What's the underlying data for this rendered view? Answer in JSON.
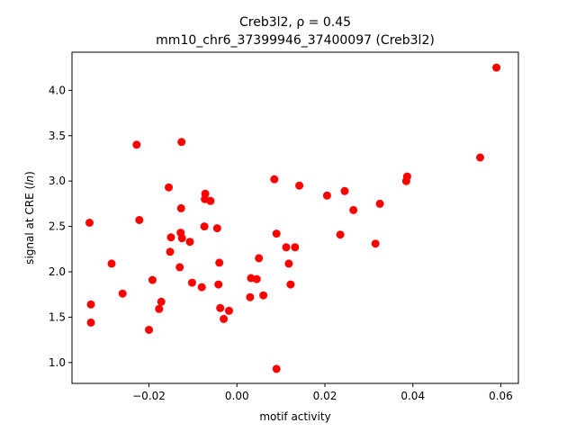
{
  "chart_data": {
    "type": "scatter",
    "title_line1": "Creb3l2, ρ = 0.45",
    "title_line2": "mm10_chr6_37399946_37400097 (Creb3l2)",
    "xlabel": "motif activity",
    "ylabel_prefix": "signal at CRE (",
    "ylabel_italic": "ln",
    "ylabel_suffix": ")",
    "xlim": [
      -0.0375,
      0.064
    ],
    "ylim": [
      0.77,
      4.42
    ],
    "xticks": [
      -0.02,
      0.0,
      0.02,
      0.04,
      0.06
    ],
    "xtick_labels": [
      "−0.02",
      "0.00",
      "0.02",
      "0.04",
      "0.06"
    ],
    "yticks": [
      1.0,
      1.5,
      2.0,
      2.5,
      3.0,
      3.5,
      4.0
    ],
    "ytick_labels": [
      "1.0",
      "1.5",
      "2.0",
      "2.5",
      "3.0",
      "3.5",
      "4.0"
    ],
    "grid": false,
    "marker_color": "#ff0000",
    "points": [
      [
        -0.0335,
        2.54
      ],
      [
        -0.0332,
        1.64
      ],
      [
        -0.0332,
        1.44
      ],
      [
        -0.0285,
        2.09
      ],
      [
        -0.026,
        1.76
      ],
      [
        -0.0228,
        3.4
      ],
      [
        -0.0222,
        2.57
      ],
      [
        -0.02,
        1.36
      ],
      [
        -0.0192,
        1.91
      ],
      [
        -0.0177,
        1.59
      ],
      [
        -0.0172,
        1.67
      ],
      [
        -0.0155,
        2.93
      ],
      [
        -0.0152,
        2.22
      ],
      [
        -0.015,
        2.38
      ],
      [
        -0.013,
        2.05
      ],
      [
        -0.0128,
        2.43
      ],
      [
        -0.0127,
        2.7
      ],
      [
        -0.0126,
        3.43
      ],
      [
        -0.0125,
        2.37
      ],
      [
        -0.0107,
        2.33
      ],
      [
        -0.0102,
        1.88
      ],
      [
        -0.008,
        1.83
      ],
      [
        -0.0074,
        2.5
      ],
      [
        -0.0073,
        2.8
      ],
      [
        -0.0072,
        2.86
      ],
      [
        -0.006,
        2.78
      ],
      [
        -0.0045,
        2.48
      ],
      [
        -0.0042,
        1.86
      ],
      [
        -0.004,
        2.1
      ],
      [
        -0.0038,
        1.6
      ],
      [
        -0.003,
        1.48
      ],
      [
        -0.0018,
        1.57
      ],
      [
        0.003,
        1.72
      ],
      [
        0.0032,
        1.93
      ],
      [
        0.0045,
        1.92
      ],
      [
        0.005,
        2.15
      ],
      [
        0.006,
        1.74
      ],
      [
        0.0085,
        3.02
      ],
      [
        0.009,
        2.42
      ],
      [
        0.009,
        0.93
      ],
      [
        0.0112,
        2.27
      ],
      [
        0.0118,
        2.09
      ],
      [
        0.0122,
        1.86
      ],
      [
        0.0132,
        2.27
      ],
      [
        0.0142,
        2.95
      ],
      [
        0.0205,
        2.84
      ],
      [
        0.0235,
        2.41
      ],
      [
        0.0245,
        2.89
      ],
      [
        0.0265,
        2.68
      ],
      [
        0.0315,
        2.31
      ],
      [
        0.0325,
        2.75
      ],
      [
        0.0385,
        3.0
      ],
      [
        0.0387,
        3.05
      ],
      [
        0.0553,
        3.26
      ],
      [
        0.059,
        4.25
      ]
    ]
  }
}
